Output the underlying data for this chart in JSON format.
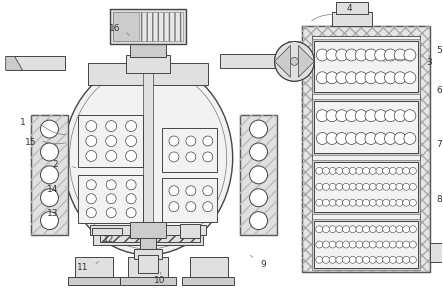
{
  "bg_color": "#ffffff",
  "lc": "#777777",
  "dc": "#444444",
  "fc_light": "#f2f2f2",
  "fc_med": "#e0e0e0",
  "fc_dark": "#cccccc",
  "figure_size": [
    4.43,
    2.88
  ],
  "dpi": 100
}
